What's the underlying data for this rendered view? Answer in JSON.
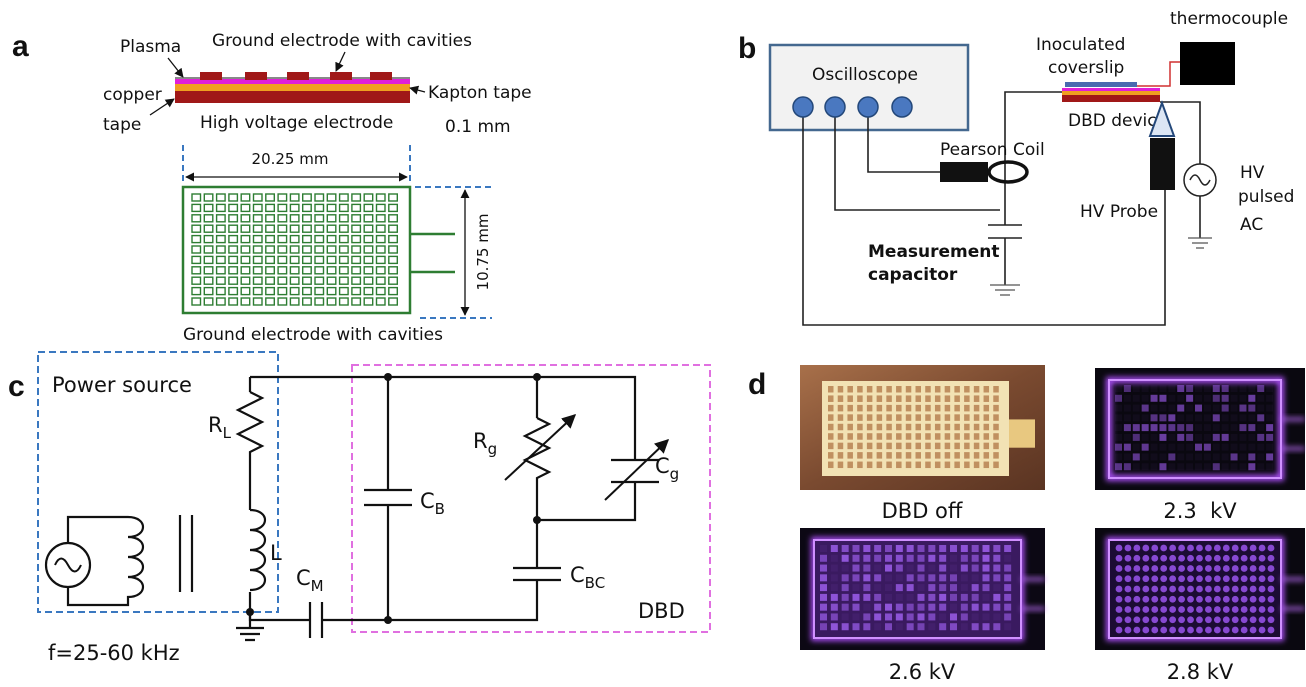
{
  "panel_a": {
    "label": "a",
    "plasma": "Plasma",
    "ground_electrode_top": "Ground electrode with cavities",
    "copper": "copper",
    "tape": "tape",
    "kapton": "Kapton tape",
    "thickness": "0.1 mm",
    "hv_electrode": "High voltage electrode",
    "width": "20.25 mm",
    "height": "10.75 mm",
    "ground_electrode_bottom": "Ground electrode with cavities"
  },
  "panel_b": {
    "label": "b",
    "oscilloscope": "Oscilloscope",
    "thermocouple": "thermocouple",
    "coverslip": [
      "Inoculated",
      "coverslip"
    ],
    "dbd_device": "DBD device",
    "pearson_coil": "Pearson Coil",
    "hv_probe": "HV Probe",
    "hv_source": [
      "HV",
      "pulsed",
      "AC"
    ],
    "capacitor": [
      "Measurement",
      "capacitor"
    ]
  },
  "panel_c": {
    "label": "c",
    "power_source": "Power source",
    "R_L": {
      "symbol": "R",
      "subscript": "L"
    },
    "L": "L",
    "C_M": {
      "symbol": "C",
      "subscript": "M"
    },
    "C_B": {
      "symbol": "C",
      "subscript": "B"
    },
    "R_g": {
      "symbol": "R",
      "subscript": "g"
    },
    "C_g": {
      "symbol": "C",
      "subscript": "g"
    },
    "C_BC": {
      "symbol": "C",
      "subscript": "BC"
    },
    "dbd": "DBD",
    "frequency": "f=25-60 kHz"
  },
  "panel_d": {
    "label": "d",
    "images": [
      "DBD off",
      "2.3  kV",
      "2.6 kV",
      "2.8 kV"
    ]
  }
}
